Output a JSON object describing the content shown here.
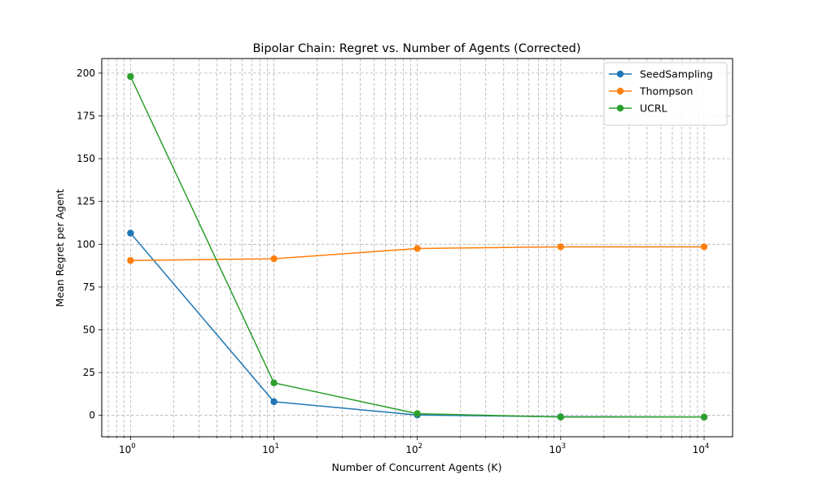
{
  "chart_data": {
    "type": "line",
    "title": "Bipolar Chain: Regret vs. Number of Agents (Corrected)",
    "xlabel": "Number of Concurrent Agents (K)",
    "ylabel": "Mean Regret per Agent",
    "x_scale": "log",
    "x": [
      1,
      10,
      100,
      1000,
      10000
    ],
    "x_tick_bases": [
      "10",
      "10",
      "10",
      "10",
      "10"
    ],
    "x_tick_exponents": [
      "0",
      "1",
      "2",
      "3",
      "4"
    ],
    "xlim": [
      0.63,
      15800
    ],
    "ylim": [
      -12.5,
      208.5
    ],
    "y_ticks": [
      0,
      25,
      50,
      75,
      100,
      125,
      150,
      175,
      200
    ],
    "y_tick_labels": [
      "0",
      "25",
      "50",
      "75",
      "100",
      "125",
      "150",
      "175",
      "200"
    ],
    "grid": true,
    "grid_style": "dashed",
    "legend_position": "top-right",
    "series": [
      {
        "name": "SeedSampling",
        "color": "#1f77b4",
        "marker": "circle",
        "values": [
          106.5,
          8.0,
          0.2,
          -0.8,
          -1.0
        ]
      },
      {
        "name": "Thompson",
        "color": "#ff7f0e",
        "marker": "circle",
        "values": [
          90.5,
          91.5,
          97.5,
          98.5,
          98.5
        ]
      },
      {
        "name": "UCRL",
        "color": "#2ca02c",
        "marker": "circle",
        "values": [
          198.0,
          19.0,
          1.0,
          -1.0,
          -1.0
        ]
      }
    ]
  }
}
